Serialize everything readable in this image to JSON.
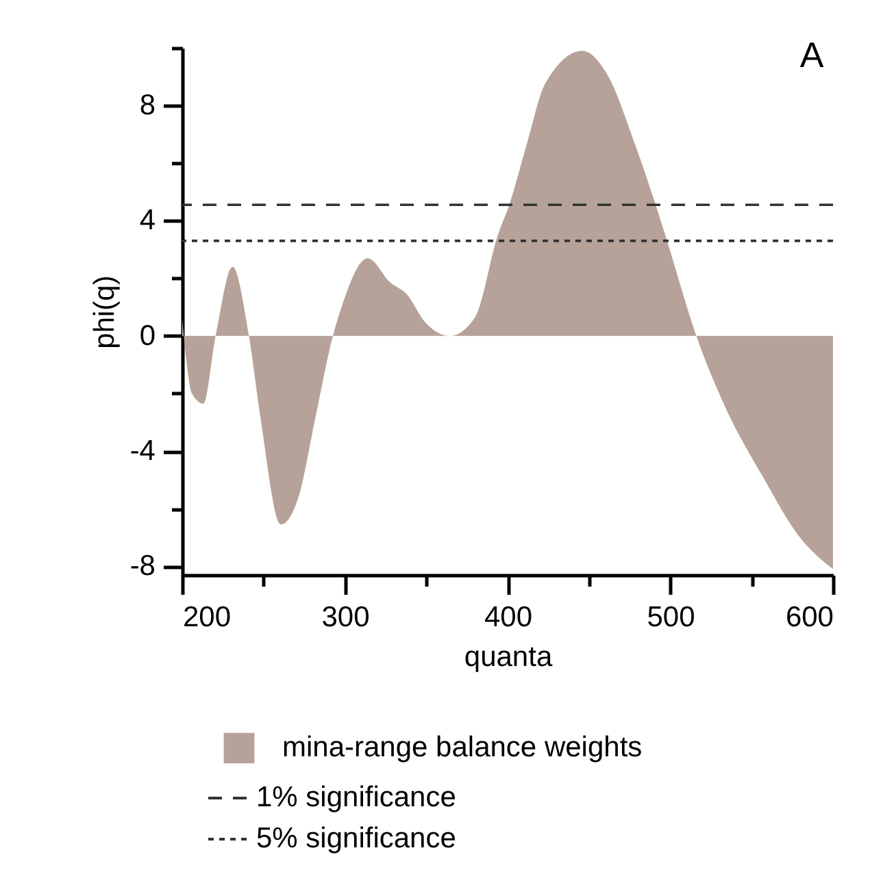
{
  "chart_data": {
    "type": "area",
    "title": "A",
    "xlabel": "quanta",
    "ylabel": "phi(q)",
    "x": [
      200,
      206,
      213,
      220.5,
      231,
      241,
      248,
      260.6,
      272,
      282,
      292.6,
      298.5,
      314,
      328,
      338,
      349,
      364.5,
      380,
      394,
      401,
      412,
      423,
      446,
      461,
      478,
      491,
      498,
      516,
      534,
      557,
      579,
      600
    ],
    "series": [
      {
        "name": "mina-range balance weights",
        "color": "#b6a298",
        "values": [
          0.6,
          -2.0,
          -2.35,
          0,
          2.4,
          0,
          -2.8,
          -6.55,
          -5.5,
          -2.8,
          0,
          1.1,
          2.7,
          1.85,
          1.45,
          0.5,
          0,
          0.65,
          3.5,
          4.55,
          6.7,
          8.75,
          9.9,
          9.1,
          6.7,
          4.55,
          3.3,
          0,
          -2.5,
          -4.9,
          -6.95,
          -8.1
        ]
      }
    ],
    "xlim": [
      200,
      600
    ],
    "ylim": [
      -8.3,
      10
    ],
    "xticks": [
      200,
      {
        "value": 250,
        "label": null
      },
      300,
      {
        "value": 350,
        "label": null
      },
      400,
      {
        "value": 450,
        "label": null
      },
      500,
      {
        "value": 550,
        "label": null
      },
      600
    ],
    "yticks": [
      -8,
      {
        "value": -6,
        "label": null
      },
      -4,
      {
        "value": -2,
        "label": null
      },
      0,
      {
        "value": 2,
        "label": null
      },
      4,
      {
        "value": 6,
        "label": null
      },
      8,
      {
        "value": 10,
        "label": null
      }
    ],
    "ref_lines": [
      {
        "axis": "y",
        "value": 4.55,
        "label": "1% significance",
        "color": "#333333",
        "line_style": "dashed"
      },
      {
        "axis": "y",
        "value": 3.3,
        "label": "5% significance",
        "color": "#333333",
        "line_style": "dotted"
      }
    ],
    "legend": "bottom"
  }
}
